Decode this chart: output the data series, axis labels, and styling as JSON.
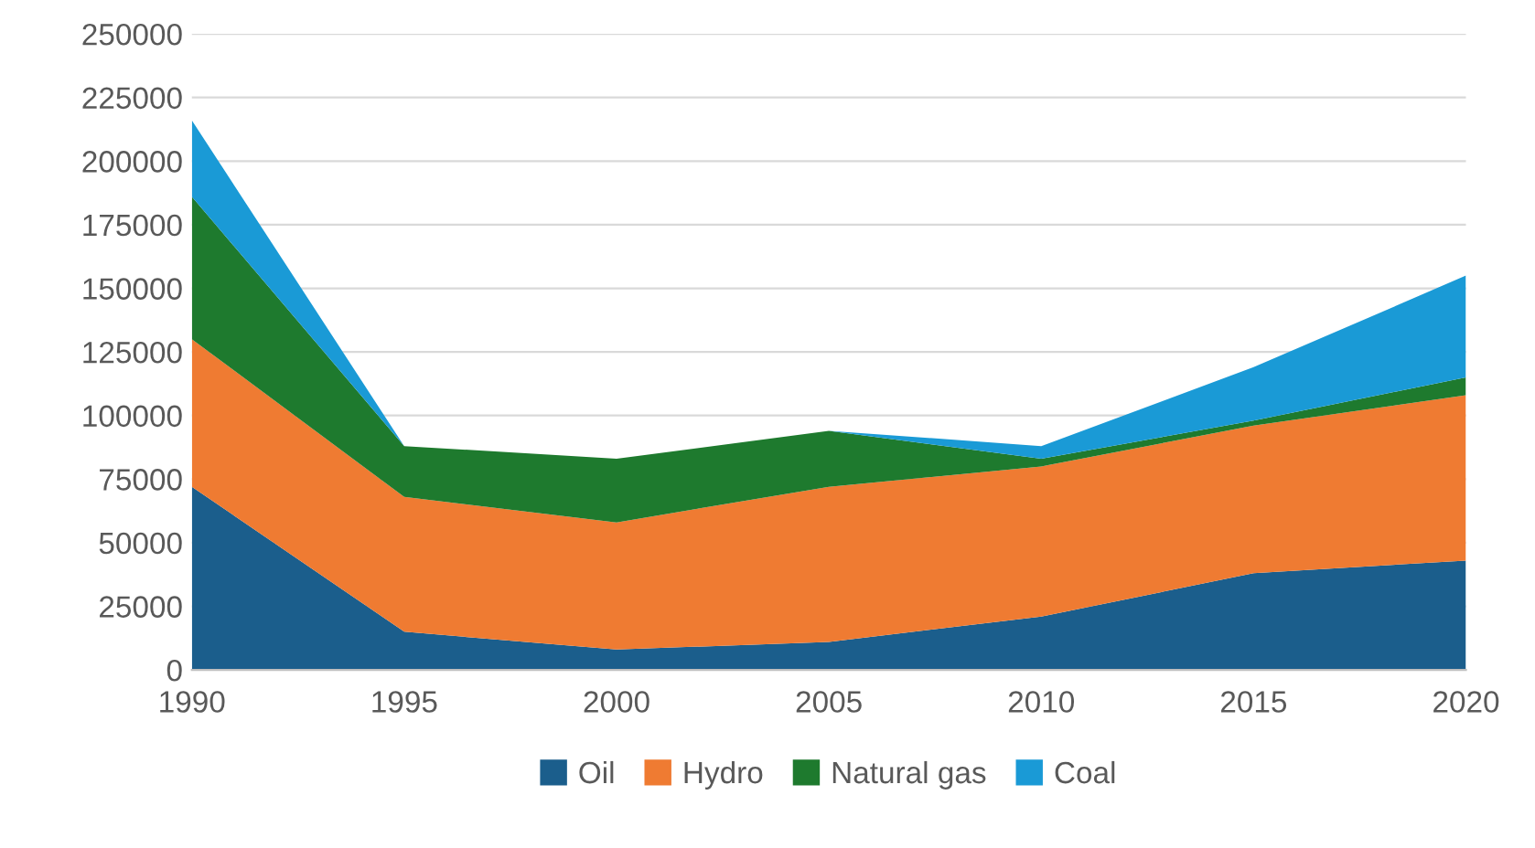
{
  "chart_data": {
    "type": "area",
    "stacked": true,
    "x": [
      1990,
      1995,
      2000,
      2005,
      2010,
      2015,
      2020
    ],
    "series": [
      {
        "name": "Oil",
        "color": "#1b5e8c",
        "values": [
          72000,
          15000,
          8000,
          11000,
          21000,
          38000,
          43000
        ]
      },
      {
        "name": "Hydro",
        "color": "#ef7b32",
        "values": [
          58000,
          53000,
          50000,
          61000,
          59000,
          58000,
          65000
        ]
      },
      {
        "name": "Natural gas",
        "color": "#1e7a2e",
        "values": [
          56000,
          20000,
          25000,
          22000,
          3000,
          2000,
          7000
        ]
      },
      {
        "name": "Coal",
        "color": "#1a9ad6",
        "values": [
          30000,
          0,
          0,
          0,
          5000,
          21000,
          40000
        ]
      }
    ],
    "xlim": [
      1990,
      2020
    ],
    "xticks": [
      1990,
      1995,
      2000,
      2005,
      2010,
      2015,
      2020
    ],
    "ylim": [
      0,
      250000
    ],
    "yticks": [
      0,
      25000,
      50000,
      75000,
      100000,
      125000,
      150000,
      175000,
      200000,
      225000,
      250000
    ],
    "grid": "y",
    "legend": "bottom"
  }
}
